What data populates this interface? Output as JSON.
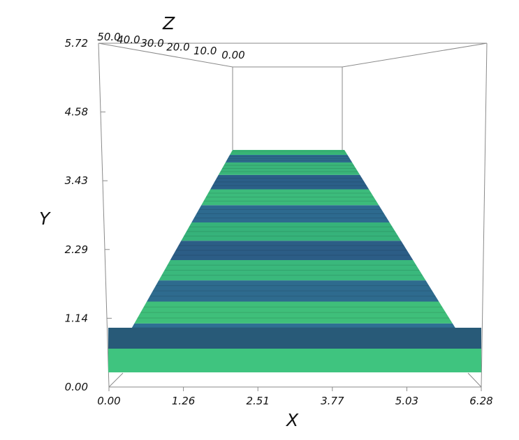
{
  "chart_data": {
    "type": "surface-3d",
    "title": "",
    "xlabel": "X",
    "ylabel": "Y",
    "zlabel": "Z",
    "x_ticks": [
      "0.00",
      "1.26",
      "2.51",
      "3.77",
      "5.03",
      "6.28"
    ],
    "y_ticks": [
      "0.00",
      "1.14",
      "2.29",
      "3.43",
      "4.58",
      "5.72"
    ],
    "z_ticks": [
      "0.00",
      "10.0",
      "20.0",
      "30.0",
      "40.0",
      "50.0"
    ],
    "xlim": [
      0,
      6.28
    ],
    "ylim": [
      0,
      5.72
    ],
    "zlim": [
      0,
      50
    ],
    "surface": {
      "description_colors": [
        "#2c6e8e",
        "#39b474"
      ],
      "strips": [
        {
          "z_start": 0,
          "z_end": 2,
          "color": "#3ec97e"
        },
        {
          "z_start": 2,
          "z_end": 5,
          "color": "#2a5675"
        },
        {
          "z_start": 5,
          "z_end": 8,
          "color": "#2f6f93"
        },
        {
          "z_start": 8,
          "z_end": 12,
          "color": "#3fbf7a"
        },
        {
          "z_start": 12,
          "z_end": 16,
          "color": "#2e6b8e"
        },
        {
          "z_start": 16,
          "z_end": 20,
          "color": "#3ab87c"
        },
        {
          "z_start": 20,
          "z_end": 24,
          "color": "#2c5d86"
        },
        {
          "z_start": 24,
          "z_end": 28,
          "color": "#36b27a"
        },
        {
          "z_start": 28,
          "z_end": 32,
          "color": "#2d6a8f"
        },
        {
          "z_start": 32,
          "z_end": 36,
          "color": "#3cbb7b"
        },
        {
          "z_start": 36,
          "z_end": 40,
          "color": "#2b5f88"
        },
        {
          "z_start": 40,
          "z_end": 44,
          "color": "#3ab57a"
        },
        {
          "z_start": 44,
          "z_end": 47,
          "color": "#2d6a8d"
        },
        {
          "z_start": 47,
          "z_end": 50,
          "color": "#3bbe7c"
        }
      ]
    },
    "grid": false,
    "legend": "none"
  }
}
